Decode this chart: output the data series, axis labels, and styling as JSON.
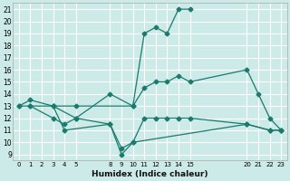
{
  "xlabel": "Humidex (Indice chaleur)",
  "bg_color": "#cceae7",
  "grid_color": "#ffffff",
  "line_color": "#1a7a6e",
  "marker": "D",
  "marker_size": 2.5,
  "xlim": [
    -0.5,
    23.5
  ],
  "ylim": [
    8.5,
    21.5
  ],
  "xticks": [
    0,
    1,
    2,
    3,
    4,
    5,
    8,
    9,
    10,
    11,
    12,
    13,
    14,
    15,
    20,
    21,
    22,
    23
  ],
  "yticks": [
    9,
    10,
    11,
    12,
    13,
    14,
    15,
    16,
    17,
    18,
    19,
    20,
    21
  ],
  "series": [
    {
      "x": [
        0,
        1,
        3,
        5,
        10,
        11,
        12,
        13,
        14,
        15
      ],
      "y": [
        13,
        13.5,
        13,
        13,
        13,
        19,
        19.5,
        19,
        21,
        21
      ]
    },
    {
      "x": [
        1,
        3,
        5,
        8,
        10,
        11,
        12,
        13,
        14,
        15,
        20,
        21,
        22,
        23
      ],
      "y": [
        13,
        13,
        12,
        14,
        13,
        14.5,
        15,
        15,
        15.5,
        15,
        16,
        14,
        12,
        11
      ]
    },
    {
      "x": [
        0,
        1,
        3,
        4,
        5,
        8,
        9,
        10,
        11,
        12,
        13,
        14,
        15,
        20,
        22,
        23
      ],
      "y": [
        13,
        13,
        12,
        11.5,
        12,
        11.5,
        9.5,
        10,
        12,
        12,
        12,
        12,
        12,
        11.5,
        11,
        11
      ]
    },
    {
      "x": [
        3,
        4,
        8,
        9,
        10,
        20,
        22,
        23
      ],
      "y": [
        13,
        11,
        11.5,
        9,
        10,
        11.5,
        11,
        11
      ]
    }
  ]
}
